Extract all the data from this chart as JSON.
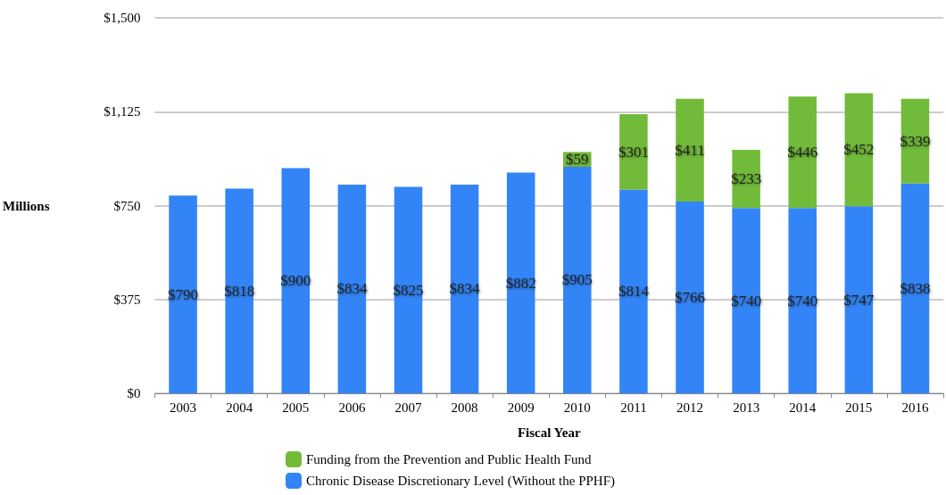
{
  "chart_data": {
    "type": "bar",
    "stacked": true,
    "xlabel": "Fiscal Year",
    "ylabel": "Millions",
    "categories": [
      "2003",
      "2004",
      "2005",
      "2006",
      "2007",
      "2008",
      "2009",
      "2010",
      "2011",
      "2012",
      "2013",
      "2014",
      "2015",
      "2016"
    ],
    "series": [
      {
        "name": "Chronic Disease Discretionary Level (Without the PPHF)",
        "color": "#3385f7",
        "values": [
          790,
          818,
          900,
          834,
          825,
          834,
          882,
          905,
          814,
          766,
          740,
          740,
          747,
          838
        ],
        "value_labels": [
          "$790",
          "$818",
          "$900",
          "$834",
          "$825",
          "$834",
          "$882",
          "$905",
          "$814",
          "$766",
          "$740",
          "$740",
          "$747",
          "$838"
        ]
      },
      {
        "name": "Funding from the Prevention and Public Health Fund",
        "color": "#72bb3a",
        "values": [
          null,
          null,
          null,
          null,
          null,
          null,
          null,
          59,
          301,
          411,
          233,
          446,
          452,
          339
        ],
        "value_labels": [
          null,
          null,
          null,
          null,
          null,
          null,
          null,
          "$59",
          "$301",
          "$411",
          "$233",
          "$446",
          "$452",
          "$339"
        ]
      }
    ],
    "ylim": [
      0,
      1500
    ],
    "yticks": [
      {
        "value": 0,
        "label": "$0"
      },
      {
        "value": 375,
        "label": "$375"
      },
      {
        "value": 750,
        "label": "$750"
      },
      {
        "value": 1125,
        "label": "$1,125"
      },
      {
        "value": 1500,
        "label": "$1,500"
      }
    ],
    "grid": "y",
    "legend": "bottom"
  }
}
